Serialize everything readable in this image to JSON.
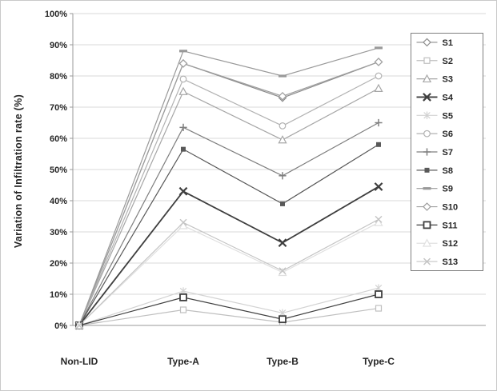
{
  "figure": {
    "ylabel": "Variation of Infiltration rate (%)"
  },
  "chart_data": {
    "type": "line",
    "title": "",
    "xlabel": "",
    "ylabel": "Variation of Infiltration rate (%)",
    "ylim": [
      0,
      100
    ],
    "grid": true,
    "legend_position": "right",
    "categories": [
      "Non-LID",
      "Type-A",
      "Type-B",
      "Type-C"
    ],
    "y_ticks": [
      "0%",
      "10%",
      "20%",
      "30%",
      "40%",
      "50%",
      "60%",
      "70%",
      "80%",
      "90%",
      "100%"
    ],
    "series": [
      {
        "name": "S1",
        "marker": "diamond-open",
        "color": "#8c8c8c",
        "values": [
          0,
          84,
          73,
          84.5
        ]
      },
      {
        "name": "S2",
        "marker": "square-open",
        "color": "#bfbfbf",
        "values": [
          0,
          5,
          1,
          5.5
        ]
      },
      {
        "name": "S3",
        "marker": "triangle-open",
        "color": "#a6a6a6",
        "values": [
          0,
          75,
          59.5,
          76
        ]
      },
      {
        "name": "S4",
        "marker": "x-bold",
        "color": "#3f3f3f",
        "values": [
          0,
          43,
          26.5,
          44.5
        ]
      },
      {
        "name": "S5",
        "marker": "asterisk",
        "color": "#d2d2d2",
        "values": [
          0,
          11,
          4,
          12
        ]
      },
      {
        "name": "S6",
        "marker": "circle-open",
        "color": "#b2b2b2",
        "values": [
          0,
          79,
          64,
          80
        ]
      },
      {
        "name": "S7",
        "marker": "plus",
        "color": "#7f7f7f",
        "values": [
          0,
          63.5,
          48,
          65
        ]
      },
      {
        "name": "S8",
        "marker": "square-filled",
        "color": "#595959",
        "values": [
          0,
          56.5,
          39,
          58
        ]
      },
      {
        "name": "S9",
        "marker": "dash",
        "color": "#999999",
        "values": [
          0,
          88,
          80,
          89
        ]
      },
      {
        "name": "S10",
        "marker": "diamond-open",
        "color": "#9e9e9e",
        "values": [
          0,
          84,
          73.5,
          84.5
        ]
      },
      {
        "name": "S11",
        "marker": "square-open-bold",
        "color": "#3f3f3f",
        "values": [
          0,
          9,
          2,
          10
        ]
      },
      {
        "name": "S12",
        "marker": "triangle-open",
        "color": "#e0e0e0",
        "values": [
          0,
          32,
          17,
          33
        ]
      },
      {
        "name": "S13",
        "marker": "x",
        "color": "#c4c4c4",
        "values": [
          0,
          33,
          17.5,
          34
        ]
      }
    ]
  }
}
